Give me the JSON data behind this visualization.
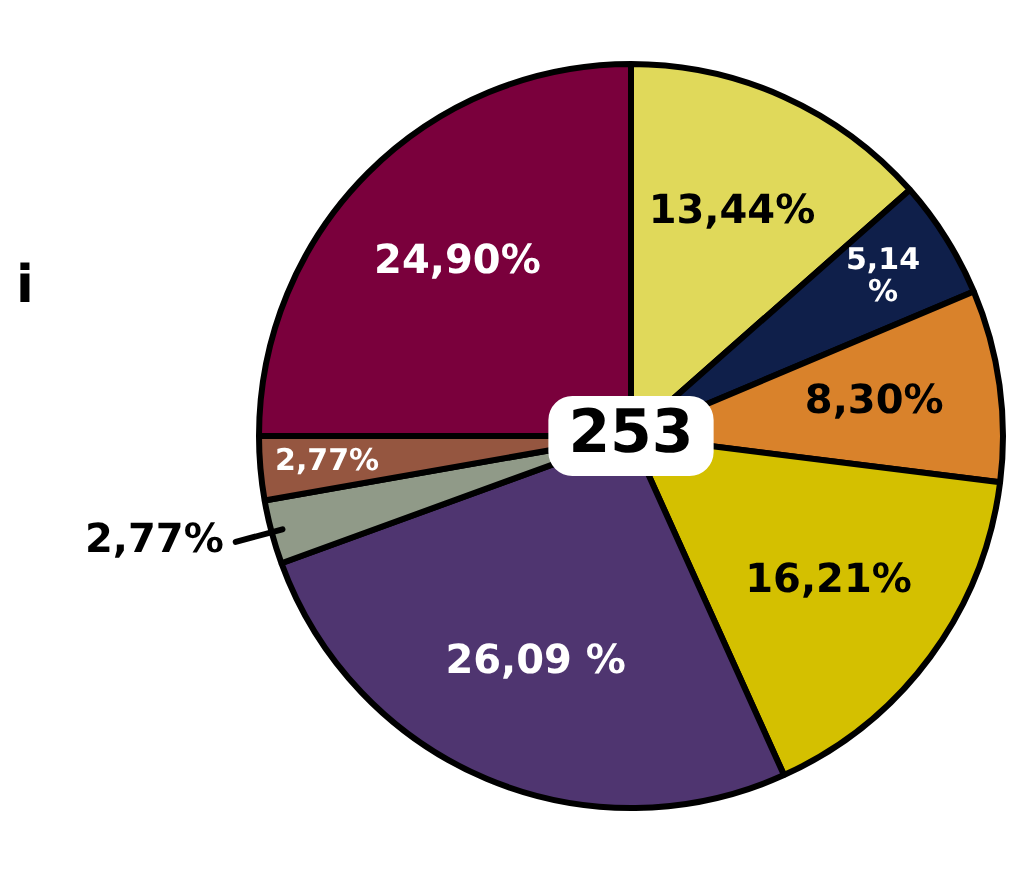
{
  "chart_data": {
    "type": "pie",
    "categories": [
      null,
      null,
      null,
      null,
      null,
      null,
      null,
      null
    ],
    "values": [
      13.44,
      5.14,
      8.3,
      16.21,
      26.09,
      2.77,
      2.77,
      24.9
    ],
    "colors": [
      "#e0d95a",
      "#0f1f4a",
      "#d9822b",
      "#d4c000",
      "#4f3570",
      "#909a88",
      "#955640",
      "#7a003c"
    ],
    "value_labels": [
      "13,44%",
      "5,14 %",
      "8,30%",
      "16,21%",
      "26,09 %",
      "2,77%",
      "2,77%",
      "24,90%"
    ],
    "annotations": [
      "253",
      "i"
    ],
    "legend": false
  }
}
